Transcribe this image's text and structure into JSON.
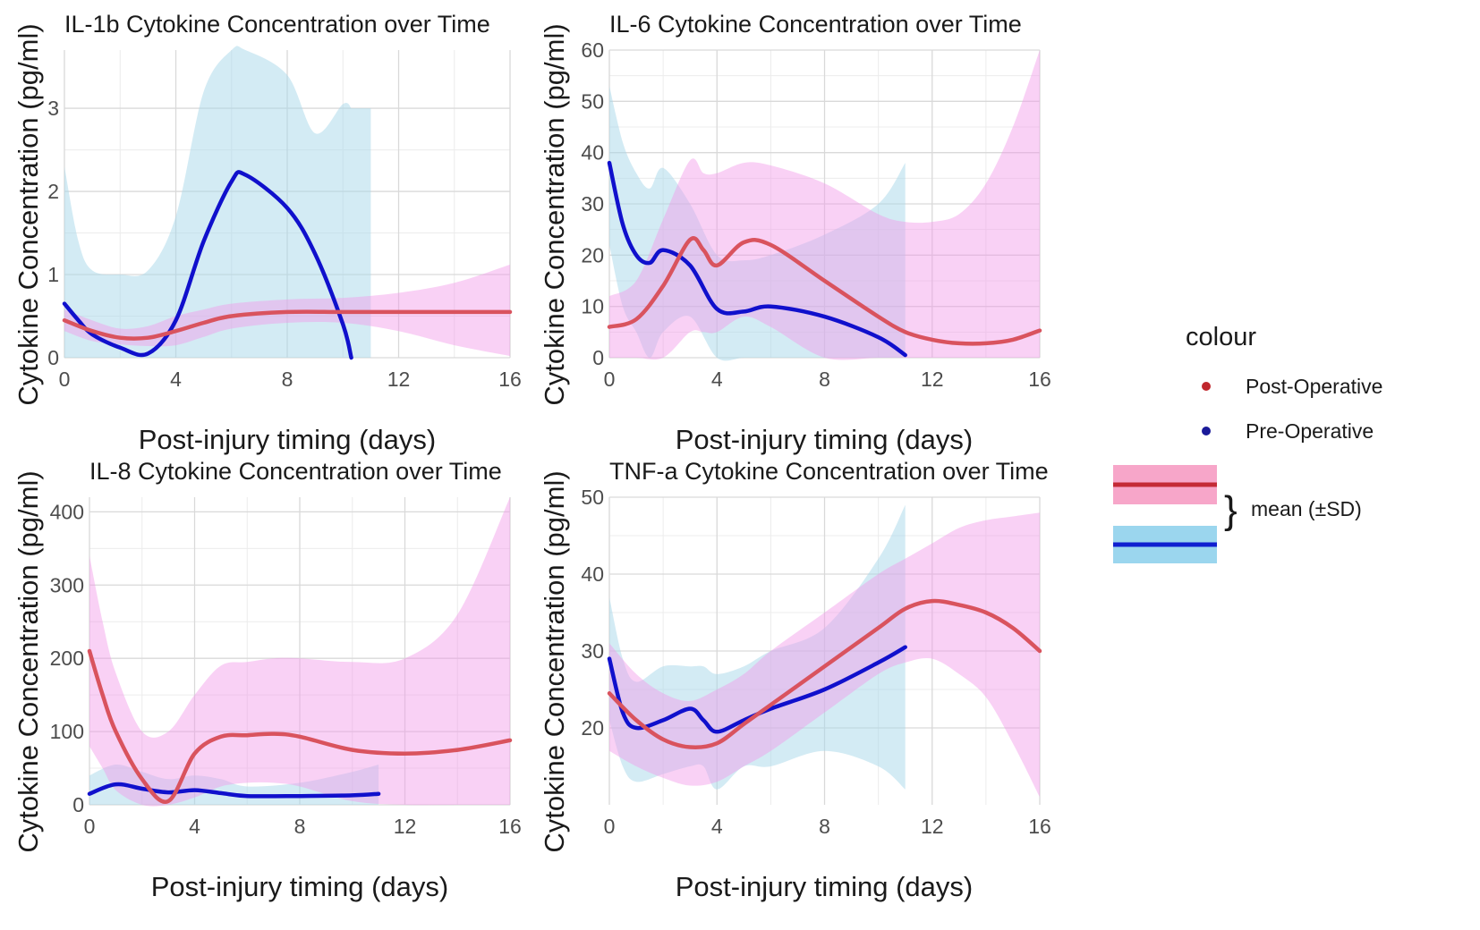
{
  "colors": {
    "post_line": "#d9535e",
    "post_band": "#f29ae9",
    "pre_line": "#1010cc",
    "pre_band": "#a8d8ea",
    "legend_post_dot": "#c0272d",
    "legend_pre_dot": "#1a1a99",
    "legend_post_box": "#f7a6c9",
    "legend_post_line": "#c42a36",
    "legend_pre_box": "#9bd6ee",
    "legend_pre_line": "#1020d0"
  },
  "legend": {
    "title": "colour",
    "items": [
      "Post-Operative",
      "Pre-Operative"
    ],
    "band_label": "mean (±SD)",
    "brace": "}"
  },
  "chart_data": [
    {
      "type": "line",
      "title": "IL-1b Cytokine Concentration over Time",
      "xlabel": "Post-injury timing (days)",
      "ylabel": "Cytokine Concentration (pg/ml)",
      "xlim": [
        0,
        16
      ],
      "ylim": [
        0,
        3.7
      ],
      "xticks": [
        0,
        4,
        8,
        12,
        16
      ],
      "xtick_labels": [
        "0",
        "4",
        "8",
        "12",
        "16"
      ],
      "yticks": [
        0,
        1,
        2,
        3
      ],
      "ytick_labels": [
        "0",
        "1",
        "2",
        "3"
      ],
      "series": [
        {
          "name": "Post-Operative",
          "x": [
            0,
            1,
            2,
            3,
            4,
            5,
            6,
            8,
            10,
            12,
            14,
            16
          ],
          "mean": [
            0.45,
            0.32,
            0.24,
            0.24,
            0.32,
            0.42,
            0.5,
            0.55,
            0.55,
            0.55,
            0.55,
            0.55
          ],
          "lower": [
            0.32,
            0.2,
            0.16,
            0.14,
            0.15,
            0.25,
            0.35,
            0.42,
            0.42,
            0.32,
            0.15,
            0.02
          ],
          "upper": [
            0.58,
            0.45,
            0.35,
            0.38,
            0.5,
            0.58,
            0.65,
            0.7,
            0.72,
            0.78,
            0.9,
            1.12
          ]
        },
        {
          "name": "Pre-Operative",
          "x": [
            0,
            0.5,
            1,
            2,
            3,
            4,
            5,
            6,
            6.5,
            8,
            9,
            10,
            10.3
          ],
          "mean": [
            0.65,
            0.45,
            0.28,
            0.12,
            0.05,
            0.45,
            1.4,
            2.12,
            2.2,
            1.8,
            1.25,
            0.4,
            0.0
          ],
          "lower": [
            0,
            0,
            0,
            0,
            0,
            0,
            0,
            0,
            0,
            0,
            0,
            0,
            0
          ],
          "upper": [
            2.3,
            1.4,
            1.05,
            1.0,
            1.05,
            1.7,
            3.2,
            3.7,
            3.7,
            3.4,
            2.7,
            3.05,
            3.0
          ]
        }
      ],
      "pre_band_xmax": 11
    },
    {
      "type": "line",
      "title": "IL-6 Cytokine Concentration over Time",
      "xlabel": "Post-injury timing (days)",
      "ylabel": "Cytokine Concentration (pg/ml)",
      "xlim": [
        0,
        16
      ],
      "ylim": [
        0,
        60
      ],
      "xticks": [
        0,
        4,
        8,
        12,
        16
      ],
      "xtick_labels": [
        "0",
        "4",
        "8",
        "12",
        "16"
      ],
      "yticks": [
        0,
        10,
        20,
        30,
        40,
        50,
        60
      ],
      "ytick_labels": [
        "0",
        "10",
        "20",
        "30",
        "40",
        "50",
        "60"
      ],
      "series": [
        {
          "name": "Post-Operative",
          "x": [
            0,
            1,
            2,
            3,
            3.5,
            4,
            5,
            6,
            8,
            10,
            11,
            12,
            13,
            14,
            15,
            16
          ],
          "mean": [
            6,
            7.5,
            14,
            23,
            21,
            18,
            22.5,
            22,
            15,
            8,
            5,
            3.5,
            2.8,
            2.8,
            3.5,
            5.3
          ],
          "lower": [
            0,
            0,
            0,
            5,
            5,
            5,
            8,
            6,
            0,
            0,
            0,
            0,
            0,
            0,
            0,
            0
          ],
          "upper": [
            12,
            15,
            27,
            38.5,
            36,
            36,
            38,
            37.5,
            34,
            28,
            26.5,
            26.5,
            28,
            34,
            45,
            60
          ]
        },
        {
          "name": "Pre-Operative",
          "x": [
            0,
            0.5,
            1,
            1.5,
            2,
            3,
            4,
            5,
            6,
            8,
            10,
            11
          ],
          "mean": [
            38,
            26,
            20,
            18.5,
            21,
            18,
            9.5,
            9,
            10,
            8,
            4,
            0.5
          ],
          "lower": [
            22,
            10,
            5,
            0,
            5,
            8,
            0,
            0,
            0,
            0,
            0,
            0
          ],
          "upper": [
            53,
            42,
            36,
            33,
            37,
            30,
            20,
            19,
            20,
            24,
            30,
            38
          ]
        }
      ],
      "pre_band_xmax": 11
    },
    {
      "type": "line",
      "title": "IL-8 Cytokine Concentration over Time",
      "xlabel": "Post-injury timing (days)",
      "ylabel": "Cytokine Concentration (pg/ml)",
      "xlim": [
        0,
        16
      ],
      "ylim": [
        0,
        420
      ],
      "xticks": [
        0,
        4,
        8,
        12,
        16
      ],
      "xtick_labels": [
        "0",
        "4",
        "8",
        "12",
        "16"
      ],
      "yticks": [
        0,
        100,
        200,
        300,
        400
      ],
      "ytick_labels": [
        "0",
        "100",
        "200",
        "300",
        "400"
      ],
      "series": [
        {
          "name": "Post-Operative",
          "x": [
            0,
            0.5,
            1,
            2,
            3,
            4,
            5,
            6,
            7,
            8,
            10,
            12,
            14,
            16
          ],
          "mean": [
            210,
            150,
            100,
            35,
            5,
            70,
            93,
            95,
            97,
            93,
            75,
            70,
            75,
            88
          ],
          "lower": [
            80,
            50,
            20,
            0,
            0,
            10,
            25,
            30,
            30,
            25,
            5,
            0,
            0,
            0
          ],
          "upper": [
            340,
            250,
            180,
            100,
            100,
            150,
            190,
            195,
            200,
            200,
            195,
            200,
            260,
            420
          ]
        },
        {
          "name": "Pre-Operative",
          "x": [
            0,
            1,
            2,
            3,
            4,
            5,
            6,
            8,
            10,
            11
          ],
          "mean": [
            15,
            28,
            22,
            17,
            20,
            16,
            12,
            12,
            13,
            15
          ],
          "lower": [
            0,
            0,
            0,
            0,
            0,
            0,
            0,
            0,
            0,
            0
          ],
          "upper": [
            40,
            55,
            45,
            35,
            40,
            35,
            25,
            30,
            45,
            55
          ]
        }
      ],
      "pre_band_xmax": 11
    },
    {
      "type": "line",
      "title": "TNF-a Cytokine Concentration over Time",
      "xlabel": "Post-injury timing (days)",
      "ylabel": "Cytokine Concentration (pg/ml)",
      "xlim": [
        0,
        16
      ],
      "ylim": [
        10,
        50
      ],
      "xticks": [
        0,
        4,
        8,
        12,
        16
      ],
      "xtick_labels": [
        "0",
        "4",
        "8",
        "12",
        "16"
      ],
      "yticks": [
        20,
        30,
        40,
        50
      ],
      "ytick_labels": [
        "20",
        "30",
        "40",
        "50"
      ],
      "series": [
        {
          "name": "Post-Operative",
          "x": [
            0,
            1,
            2,
            3,
            4,
            5,
            6,
            8,
            10,
            11,
            12,
            13,
            14,
            15,
            16
          ],
          "mean": [
            24.5,
            21,
            18.5,
            17.5,
            18,
            20.5,
            23,
            28,
            33,
            35.5,
            36.5,
            36,
            35,
            33,
            30
          ],
          "lower": [
            17,
            15,
            13.5,
            12.5,
            13,
            15,
            17,
            22,
            27,
            28.5,
            29,
            27,
            24,
            18,
            11
          ],
          "upper": [
            31,
            27,
            24.5,
            23.5,
            25,
            27,
            30,
            35,
            40,
            42,
            44,
            46,
            47,
            47.5,
            48
          ]
        },
        {
          "name": "Pre-Operative",
          "x": [
            0,
            0.5,
            1,
            2,
            3,
            3.5,
            4,
            5,
            6,
            8,
            10,
            11
          ],
          "mean": [
            29,
            22,
            20,
            21,
            22.5,
            21,
            19.5,
            21,
            22.5,
            25,
            28.5,
            30.5
          ],
          "lower": [
            21,
            15,
            13,
            14,
            15,
            15,
            12,
            15,
            15,
            17,
            15,
            12
          ],
          "upper": [
            37,
            29,
            26,
            28,
            28,
            28,
            27,
            28,
            30,
            33,
            42,
            49
          ]
        }
      ],
      "pre_band_xmax": 11
    }
  ]
}
